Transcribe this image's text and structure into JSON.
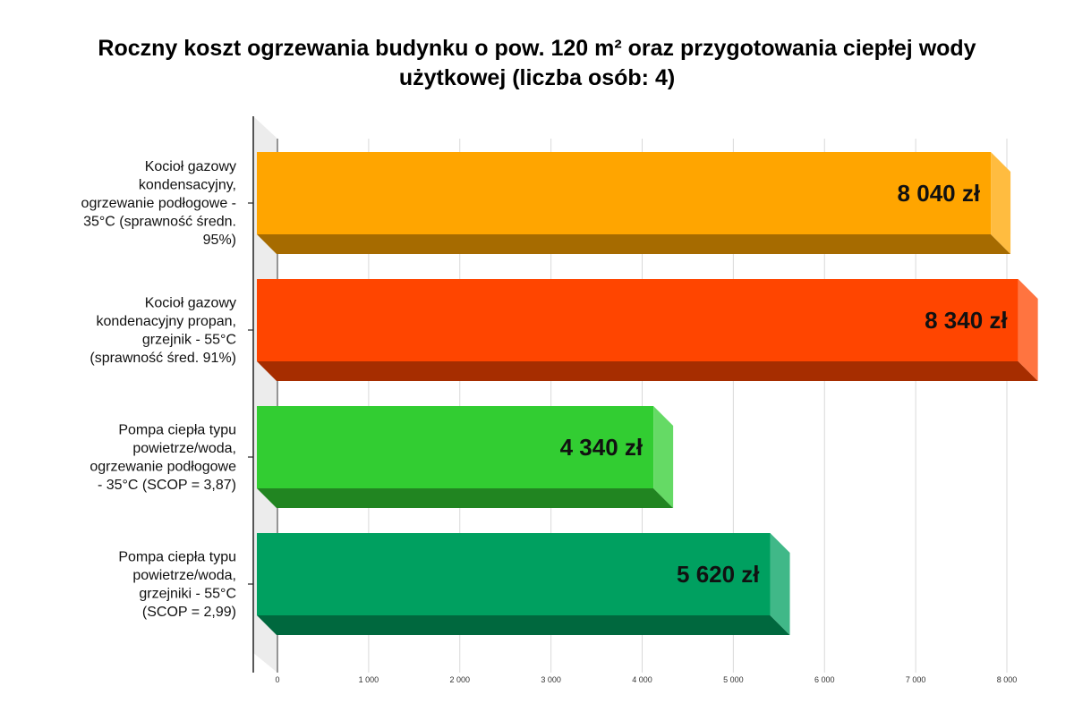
{
  "title_lines": [
    "Roczny koszt ogrzewania budynku o pow. 120 m² oraz przygotowania ciepłej wody",
    "użytkowej (liczba osób: 4)"
  ],
  "chart_data": {
    "type": "bar",
    "orientation": "horizontal",
    "style": "3d",
    "title": "Roczny koszt ogrzewania budynku o pow. 120 m² oraz przygotowania ciepłej wody użytkowej (liczba osób: 4)",
    "xlabel": "",
    "ylabel": "",
    "xlim": [
      0,
      8000
    ],
    "grid": true,
    "legend": "none",
    "ticks": [
      0,
      1000,
      2000,
      3000,
      4000,
      5000,
      6000,
      7000,
      8000
    ],
    "tick_labels": [
      "0",
      "1 000",
      "2 000",
      "3 000",
      "4 000",
      "5 000",
      "6 000",
      "7 000",
      "8 000"
    ],
    "categories": [
      {
        "lines": [
          "Kocioł gazowy",
          "kondensacyjny,",
          "ogrzewanie podłogowe -",
          "35°C (sprawność średn.",
          "95%)"
        ],
        "value": 8040,
        "value_label": "8 040 zł",
        "color": "#FFA500"
      },
      {
        "lines": [
          "Kocioł gazowy",
          "kondenacyjny propan,",
          "grzejnik - 55°C",
          "(sprawność śred. 91%)"
        ],
        "value": 8340,
        "value_label": "8 340 zł",
        "color": "#FF4500"
      },
      {
        "lines": [
          "Pompa ciepła typu",
          "powietrze/woda,",
          "ogrzewanie podłogowe",
          "- 35°C (SCOP = 3,87)"
        ],
        "value": 4340,
        "value_label": "4 340 zł",
        "color": "#32CD32"
      },
      {
        "lines": [
          "Pompa ciepła typu",
          "powietrze/woda,",
          "grzejniki - 55°C",
          "(SCOP = 2,99)"
        ],
        "value": 5620,
        "value_label": "5 620 zł",
        "color": "#00A060"
      }
    ]
  }
}
